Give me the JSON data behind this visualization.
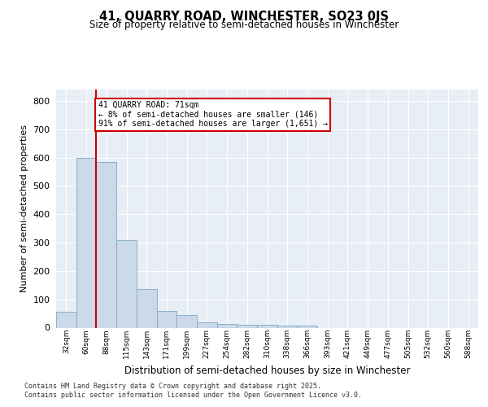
{
  "title": "41, QUARRY ROAD, WINCHESTER, SO23 0JS",
  "subtitle": "Size of property relative to semi-detached houses in Winchester",
  "xlabel": "Distribution of semi-detached houses by size in Winchester",
  "ylabel": "Number of semi-detached properties",
  "categories": [
    "32sqm",
    "60sqm",
    "88sqm",
    "115sqm",
    "143sqm",
    "171sqm",
    "199sqm",
    "227sqm",
    "254sqm",
    "282sqm",
    "310sqm",
    "338sqm",
    "366sqm",
    "393sqm",
    "421sqm",
    "449sqm",
    "477sqm",
    "505sqm",
    "532sqm",
    "560sqm",
    "588sqm"
  ],
  "values": [
    55,
    600,
    585,
    310,
    135,
    60,
    45,
    18,
    14,
    10,
    10,
    7,
    8,
    0,
    0,
    0,
    0,
    0,
    0,
    0,
    0
  ],
  "bar_color": "#ccd9e8",
  "bar_edge_color": "#7aaac8",
  "vline_x": 1.5,
  "vline_color": "#cc0000",
  "annotation_title": "41 QUARRY ROAD: 71sqm",
  "annotation_line1": "← 8% of semi-detached houses are smaller (146)",
  "annotation_line2": "91% of semi-detached houses are larger (1,651) →",
  "annotation_box_facecolor": "#ffffff",
  "annotation_box_edgecolor": "#cc0000",
  "ylim": [
    0,
    840
  ],
  "yticks": [
    0,
    100,
    200,
    300,
    400,
    500,
    600,
    700,
    800
  ],
  "background_color": "#e8eef5",
  "grid_color": "#ffffff",
  "footer_line1": "Contains HM Land Registry data © Crown copyright and database right 2025.",
  "footer_line2": "Contains public sector information licensed under the Open Government Licence v3.0."
}
